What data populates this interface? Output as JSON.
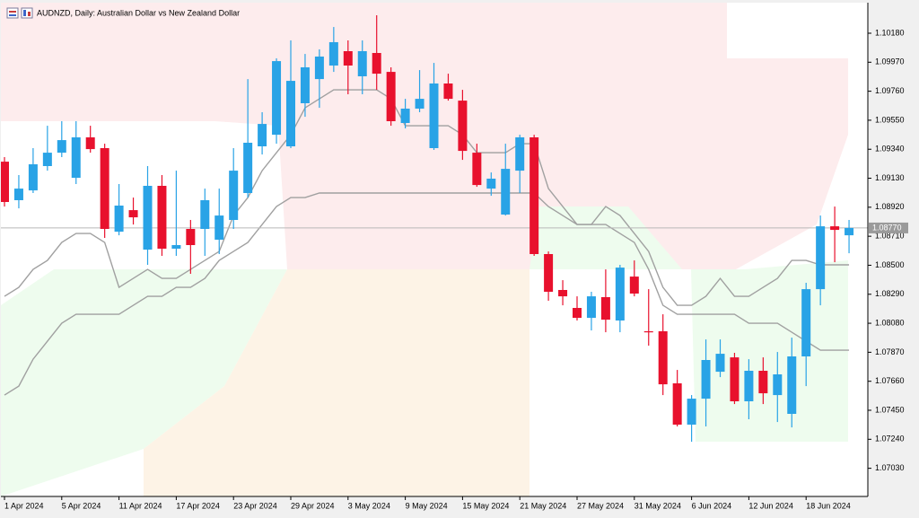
{
  "chart_data": {
    "type": "candlestick",
    "title": "AUDNZD, Daily:  Australian Dollar vs New Zealand Dollar",
    "categories": [
      "1 Apr 2024",
      null,
      null,
      null,
      "5 Apr 2024",
      null,
      null,
      null,
      "11 Apr 2024",
      null,
      null,
      null,
      "17 Apr 2024",
      null,
      null,
      null,
      "23 Apr 2024",
      null,
      null,
      null,
      "29 Apr 2024",
      null,
      null,
      null,
      "3 May 2024",
      null,
      null,
      null,
      "9 May 2024",
      null,
      null,
      null,
      "15 May 2024",
      null,
      null,
      null,
      "21 May 2024",
      null,
      null,
      null,
      "27 May 2024",
      null,
      null,
      null,
      "31 May 2024",
      null,
      null,
      null,
      "6 Jun 2024",
      null,
      null,
      null,
      "12 Jun 2024",
      null,
      null,
      null,
      "18 Jun 2024",
      null,
      null,
      null
    ],
    "open": [
      1.0925,
      1.08971,
      1.09042,
      1.09218,
      1.09315,
      1.09133,
      1.09426,
      1.09348,
      1.08743,
      1.08899,
      1.08613,
      1.09075,
      1.0862,
      1.08763,
      1.08763,
      1.08685,
      1.08828,
      1.09023,
      1.09361,
      1.09445,
      1.09361,
      1.09673,
      1.09848,
      1.09946,
      1.1005,
      1.09868,
      1.10037,
      1.099,
      1.0953,
      1.09634,
      1.09348,
      1.09816,
      1.09692,
      1.09315,
      1.09055,
      1.08867,
      1.09185,
      1.09426,
      1.08581,
      1.08321,
      1.08191,
      1.08119,
      1.08269,
      1.081,
      1.08418,
      1.08022,
      1.08022,
      1.07645,
      1.07346,
      1.07534,
      1.07729,
      1.07833,
      1.07515,
      1.07736,
      1.0756,
      1.07424,
      1.0784,
      1.08327,
      1.08782,
      1.08717
    ],
    "high": [
      1.09283,
      1.09153,
      1.09348,
      1.0951,
      1.09543,
      1.09543,
      1.0951,
      1.0938,
      1.09088,
      1.0899,
      1.09218,
      1.09153,
      1.09185,
      1.08828,
      1.09055,
      1.09055,
      1.09348,
      1.09848,
      1.09608,
      1.09998,
      1.10128,
      1.1003,
      1.10063,
      1.10225,
      1.10128,
      1.10128,
      1.1031,
      1.09933,
      1.09705,
      1.09913,
      1.09965,
      1.09887,
      1.0977,
      1.0938,
      1.09172,
      1.0938,
      1.09445,
      1.09445,
      1.086,
      1.08392,
      1.08275,
      1.08308,
      1.0847,
      1.08503,
      1.08535,
      1.08327,
      1.08145,
      1.07742,
      1.0756,
      1.07963,
      1.07963,
      1.07866,
      1.0782,
      1.07833,
      1.07872,
      1.07976,
      1.08373,
      1.0886,
      1.08925,
      1.08828
    ],
    "low": [
      1.08925,
      1.08912,
      1.09023,
      1.09185,
      1.09283,
      1.09088,
      1.09315,
      1.08698,
      1.08717,
      1.08795,
      1.08503,
      1.08568,
      1.08568,
      1.08438,
      1.08568,
      1.08581,
      1.08763,
      1.0899,
      1.09302,
      1.0938,
      1.09348,
      1.09575,
      1.0964,
      1.099,
      1.09738,
      1.09738,
      1.0977,
      1.0951,
      1.09491,
      1.09608,
      1.09335,
      1.09692,
      1.09263,
      1.09068,
      1.09003,
      1.0886,
      1.09023,
      1.08568,
      1.08243,
      1.0821,
      1.081,
      1.08028,
      1.08015,
      1.08015,
      1.08275,
      1.07918,
      1.0756,
      1.07333,
      1.07222,
      1.07333,
      1.0769,
      1.07495,
      1.07385,
      1.07495,
      1.07365,
      1.07326,
      1.07625,
      1.0821,
      1.08522,
      1.08587
    ],
    "close": [
      1.08958,
      1.09055,
      1.09231,
      1.09315,
      1.09406,
      1.09426,
      1.09341,
      1.08763,
      1.08932,
      1.08847,
      1.09075,
      1.0862,
      1.08646,
      1.08646,
      1.08971,
      1.0886,
      1.09185,
      1.09387,
      1.09523,
      1.09978,
      1.09835,
      1.09933,
      1.10011,
      1.10115,
      1.09946,
      1.1005,
      1.09887,
      1.09543,
      1.09634,
      1.09705,
      1.09816,
      1.09705,
      1.09328,
      1.09081,
      1.09127,
      1.09198,
      1.09426,
      1.08581,
      1.08308,
      1.08275,
      1.08119,
      1.08275,
      1.08106,
      1.08483,
      1.08295,
      1.08015,
      1.07638,
      1.07346,
      1.07534,
      1.07814,
      1.07859,
      1.07515,
      1.07736,
      1.07573,
      1.0771,
      1.0784,
      1.08327,
      1.08782,
      1.08756,
      1.0877
    ],
    "up_color": "#29a3e6",
    "down_color": "#e8112d",
    "indicators": [
      {
        "color": "#a0a0a0",
        "values": [
          1.08275,
          1.0834,
          1.0847,
          1.08535,
          1.08665,
          1.0873,
          1.0873,
          1.08665,
          1.0834,
          1.08405,
          1.0847,
          1.08405,
          1.08405,
          1.0847,
          1.08535,
          1.086,
          1.0886,
          1.0899,
          1.09185,
          1.09315,
          1.09445,
          1.0964,
          1.09705,
          1.0977,
          1.0977,
          1.0977,
          1.0977,
          1.09705,
          1.0951,
          1.0951,
          1.0951,
          1.0951,
          1.09445,
          1.09315,
          1.09315,
          1.09315,
          1.0938,
          1.0938,
          1.09055,
          1.08925,
          1.08795,
          1.08795,
          1.08925,
          1.0886,
          1.0873,
          1.086,
          1.0834,
          1.0821,
          1.0821,
          1.08275,
          1.08405,
          1.08275,
          1.08275,
          1.0834,
          1.08405,
          1.08535,
          1.08535,
          1.08503,
          1.08503,
          1.08503
        ]
      },
      {
        "color": "#a0a0a0",
        "values": [
          1.0756,
          1.07625,
          1.0782,
          1.0795,
          1.0808,
          1.08145,
          1.08145,
          1.08145,
          1.08145,
          1.0821,
          1.08275,
          1.08275,
          1.0834,
          1.0834,
          1.08405,
          1.08535,
          1.086,
          1.08665,
          1.08795,
          1.08925,
          1.0899,
          1.0899,
          1.09023,
          1.09023,
          1.09023,
          1.09023,
          1.09023,
          1.09023,
          1.09023,
          1.09023,
          1.09023,
          1.09023,
          1.09023,
          1.09023,
          1.09023,
          1.09023,
          1.09023,
          1.09023,
          1.08925,
          1.0886,
          1.08795,
          1.08795,
          1.08795,
          1.0873,
          1.08665,
          1.0847,
          1.0821,
          1.08145,
          1.08145,
          1.08145,
          1.08145,
          1.08145,
          1.0808,
          1.0808,
          1.0808,
          1.08015,
          1.0795,
          1.07885,
          1.07885,
          1.07885
        ]
      }
    ],
    "current_price": {
      "value": 1.0877,
      "label": "1.08770"
    },
    "ylim": [
      1.06826,
      1.10388
    ],
    "yticks": [
      {
        "value": 1.0703,
        "label": "1.07030"
      },
      {
        "value": 1.0724,
        "label": "1.07240"
      },
      {
        "value": 1.0745,
        "label": "1.07450"
      },
      {
        "value": 1.0766,
        "label": "1.07660"
      },
      {
        "value": 1.0787,
        "label": "1.07870"
      },
      {
        "value": 1.0808,
        "label": "1.08080"
      },
      {
        "value": 1.0829,
        "label": "1.08290"
      },
      {
        "value": 1.085,
        "label": "1.08500"
      },
      {
        "value": 1.0871,
        "label": "1.08710"
      },
      {
        "value": 1.0892,
        "label": "1.08920"
      },
      {
        "value": 1.0913,
        "label": "1.09130"
      },
      {
        "value": 1.0934,
        "label": "1.09340"
      },
      {
        "value": 1.0955,
        "label": "1.09550"
      },
      {
        "value": 1.0976,
        "label": "1.09760"
      },
      {
        "value": 1.0997,
        "label": "1.09970"
      },
      {
        "value": 1.1018,
        "label": "1.10180"
      }
    ]
  }
}
